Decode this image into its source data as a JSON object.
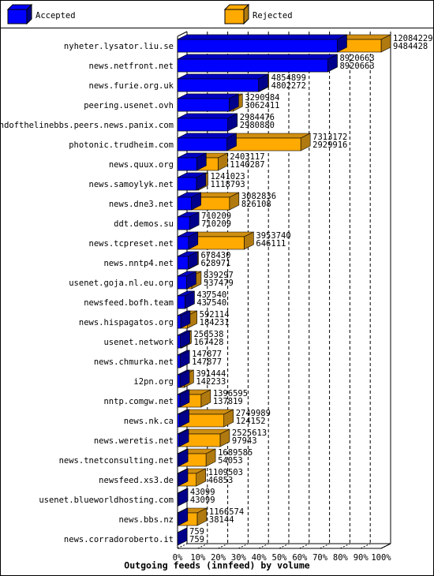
{
  "chart_data": {
    "type": "bar3d",
    "orientation": "horizontal",
    "title": "Outgoing feeds (innfeed) by volume",
    "legend": [
      {
        "name": "Accepted",
        "color": "#0000ff"
      },
      {
        "name": "Rejected",
        "color": "#ffaa00"
      }
    ],
    "categories": [
      "nyheter.lysator.liu.se",
      "news.netfront.net",
      "news.furie.org.uk",
      "peering.usenet.ovh",
      "endofthelinebbs.peers.news.panix.com",
      "photonic.trudheim.com",
      "news.quux.org",
      "news.samoylyk.net",
      "news.dne3.net",
      "ddt.demos.su",
      "news.tcpreset.net",
      "news.nntp4.net",
      "usenet.goja.nl.eu.org",
      "newsfeed.bofh.team",
      "news.hispagatos.org",
      "usenet.network",
      "news.chmurka.net",
      "i2pn.org",
      "nntp.comgw.net",
      "news.nk.ca",
      "news.weretis.net",
      "news.tnetconsulting.net",
      "newsfeed.xs3.de",
      "usenet.blueworldhosting.com",
      "news.bbs.nz",
      "news.corradoroberto.it"
    ],
    "totals": [
      12084229,
      8920663,
      4854899,
      3290984,
      2984476,
      7313172,
      2403117,
      1241023,
      3082836,
      710209,
      3953740,
      678430,
      839297,
      437540,
      592114,
      256538,
      147877,
      391444,
      1396595,
      2749989,
      2525613,
      1689585,
      1109503,
      43099,
      1166574,
      759
    ],
    "accepted": [
      9484428,
      8920663,
      4802272,
      3062411,
      2980880,
      2929916,
      1140287,
      1118793,
      826108,
      710209,
      646111,
      628971,
      537479,
      437540,
      184231,
      167428,
      147877,
      142233,
      137819,
      124152,
      97943,
      54053,
      46853,
      43099,
      38144,
      759
    ],
    "xlim": [
      0,
      12084229
    ],
    "xticks": [
      {
        "value": 0,
        "label": "0%"
      },
      {
        "value": 1208422.9,
        "label": "10%"
      },
      {
        "value": 2416845.8,
        "label": "20%"
      },
      {
        "value": 3625268.7,
        "label": "30%"
      },
      {
        "value": 4833691.6,
        "label": "40%"
      },
      {
        "value": 6042114.5,
        "label": "50%"
      },
      {
        "value": 7250537.4,
        "label": "60%"
      },
      {
        "value": 8458960.3,
        "label": "70%"
      },
      {
        "value": 9667383.2,
        "label": "80%"
      },
      {
        "value": 10875806.1,
        "label": "90%"
      },
      {
        "value": 12084229,
        "label": "100%"
      }
    ],
    "grid": true
  }
}
